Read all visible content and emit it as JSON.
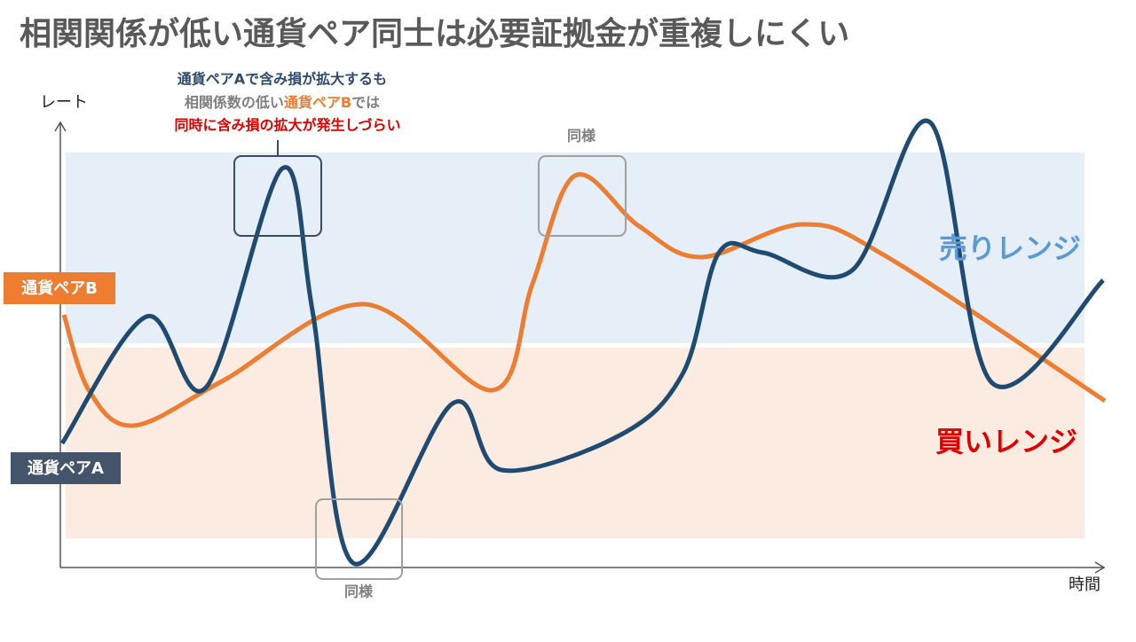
{
  "title": "相関関係が低い通貨ペア同士は必要証拠金が重複しにくい",
  "annotation": {
    "line1": "通貨ペアAで含み損が拡大するも",
    "line2a": "相関係数の低い",
    "line2b": "通貨ペアB",
    "line2c": "では",
    "line3": "同時に含み損の拡大が発生しづらい"
  },
  "same_labels": [
    "同様",
    "同様"
  ],
  "axes": {
    "y_label": "レート",
    "x_label": "時間"
  },
  "ranges": {
    "sell": "売りレンジ",
    "buy": "買いレンジ"
  },
  "series_labels": {
    "b": "通貨ペアB",
    "a": "通貨ペアA"
  }
}
